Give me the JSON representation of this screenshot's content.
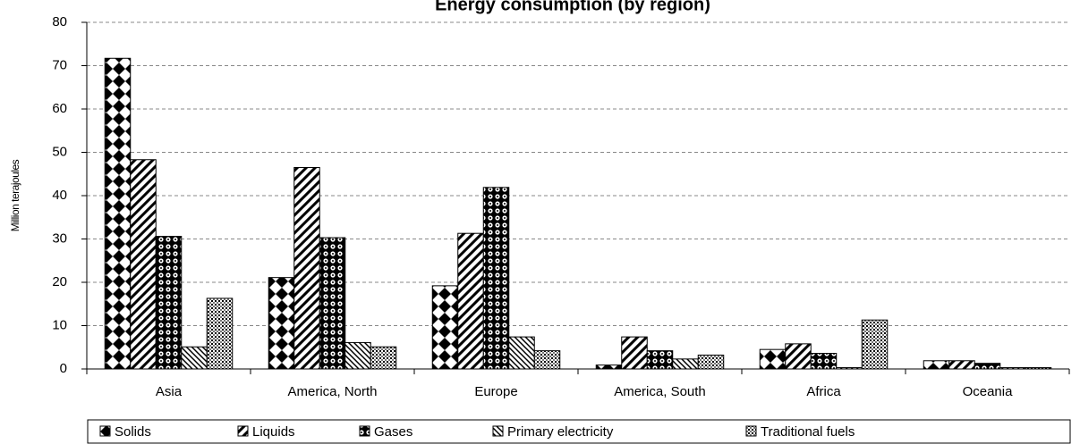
{
  "chart_data": {
    "type": "bar",
    "title": "Energy consumption (by region)",
    "y_label": "Million terajoules",
    "categories": [
      "Asia",
      "America, North",
      "Europe",
      "America, South",
      "Africa",
      "Oceania"
    ],
    "series": [
      {
        "name": "Solids",
        "color": "#000000",
        "pattern": "diamonds",
        "values": [
          71.7,
          21.1,
          19.2,
          0.9,
          4.5,
          1.9
        ]
      },
      {
        "name": "Liquids",
        "color": "#000000",
        "pattern": "diagonal",
        "values": [
          48.3,
          46.5,
          31.3,
          7.4,
          5.8,
          1.9
        ]
      },
      {
        "name": "Gases",
        "color": "#000000",
        "pattern": "circles",
        "values": [
          30.6,
          30.3,
          41.9,
          4.2,
          3.6,
          1.3
        ]
      },
      {
        "name": "Primary electricity",
        "color": "#000000",
        "pattern": "hatch",
        "values": [
          5.1,
          6.1,
          7.4,
          2.3,
          0.3,
          0.3
        ]
      },
      {
        "name": "Traditional fuels",
        "color": "#000000",
        "pattern": "dots",
        "values": [
          16.3,
          5.1,
          4.2,
          3.2,
          11.3,
          0.3
        ]
      }
    ],
    "ylim": [
      0,
      80
    ],
    "yticks": [
      0,
      10,
      20,
      30,
      40,
      50,
      60,
      70,
      80
    ],
    "grid": true,
    "legend": "bottom"
  }
}
